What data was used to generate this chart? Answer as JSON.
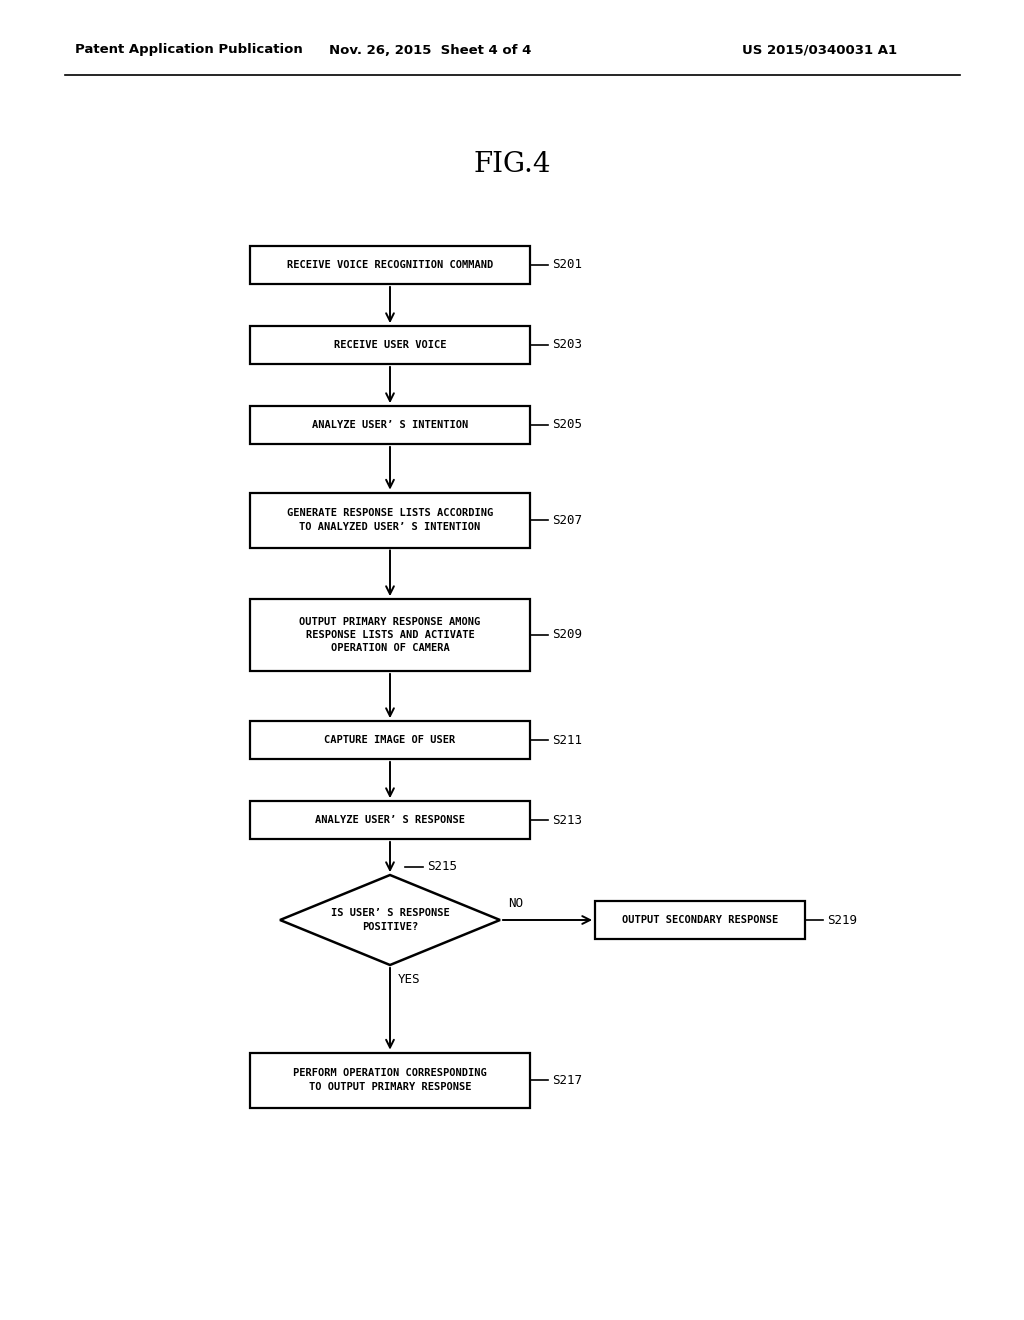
{
  "title": "FIG.4",
  "header_left": "Patent Application Publication",
  "header_mid": "Nov. 26, 2015  Sheet 4 of 4",
  "header_right": "US 2015/0340031 A1",
  "background_color": "#ffffff",
  "font_size_box": 7.5,
  "font_size_label": 9.0,
  "font_size_title": 20,
  "font_size_header": 9.5,
  "box_texts": {
    "S201": [
      "RECEIVE VOICE RECOGNITION COMMAND"
    ],
    "S203": [
      "RECEIVE USER VOICE"
    ],
    "S205": [
      "ANALYZE USER’ S INTENTION"
    ],
    "S207": [
      "GENERATE RESPONSE LISTS ACCORDING",
      "TO ANALYZED USER’ S INTENTION"
    ],
    "S209": [
      "OUTPUT PRIMARY RESPONSE AMONG",
      "RESPONSE LISTS AND ACTIVATE",
      "OPERATION OF CAMERA"
    ],
    "S211": [
      "CAPTURE IMAGE OF USER"
    ],
    "S213": [
      "ANALYZE USER’ S RESPONSE"
    ],
    "S215": [
      "IS USER’ S RESPONSE",
      "POSITIVE?"
    ],
    "S219": [
      "OUTPUT SECONDARY RESPONSE"
    ],
    "S217": [
      "PERFORM OPERATION CORRESPONDING",
      "TO OUTPUT PRIMARY RESPONSE"
    ]
  }
}
